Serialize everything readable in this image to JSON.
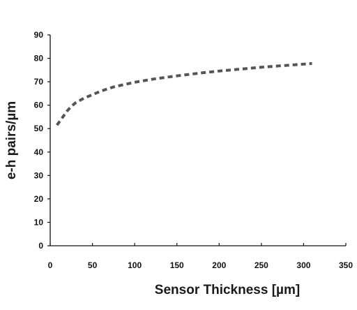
{
  "chart_data": {
    "type": "line",
    "title": "",
    "xlabel": "Sensor Thickness [µm]",
    "ylabel": "e-h pairs/µm",
    "xlim": [
      0,
      350
    ],
    "ylim": [
      0,
      90
    ],
    "xticks": [
      "0",
      "50",
      "100",
      "150",
      "200",
      "250",
      "300",
      "350"
    ],
    "yticks": [
      "0",
      "10",
      "20",
      "30",
      "40",
      "50",
      "60",
      "70",
      "80",
      "90"
    ],
    "grid": false,
    "legend": "none",
    "series": [
      {
        "color": "#555555",
        "style": "dashed",
        "x": [
          8,
          15,
          20,
          25,
          30,
          40,
          50,
          60,
          75,
          100,
          125,
          150,
          175,
          200,
          225,
          250,
          275,
          300,
          310
        ],
        "y": [
          51.5,
          55,
          57.5,
          59.5,
          61,
          63,
          64.5,
          66,
          67.8,
          69.8,
          71.3,
          72.5,
          73.6,
          74.6,
          75.4,
          76.2,
          76.9,
          77.5,
          77.8
        ]
      }
    ]
  }
}
